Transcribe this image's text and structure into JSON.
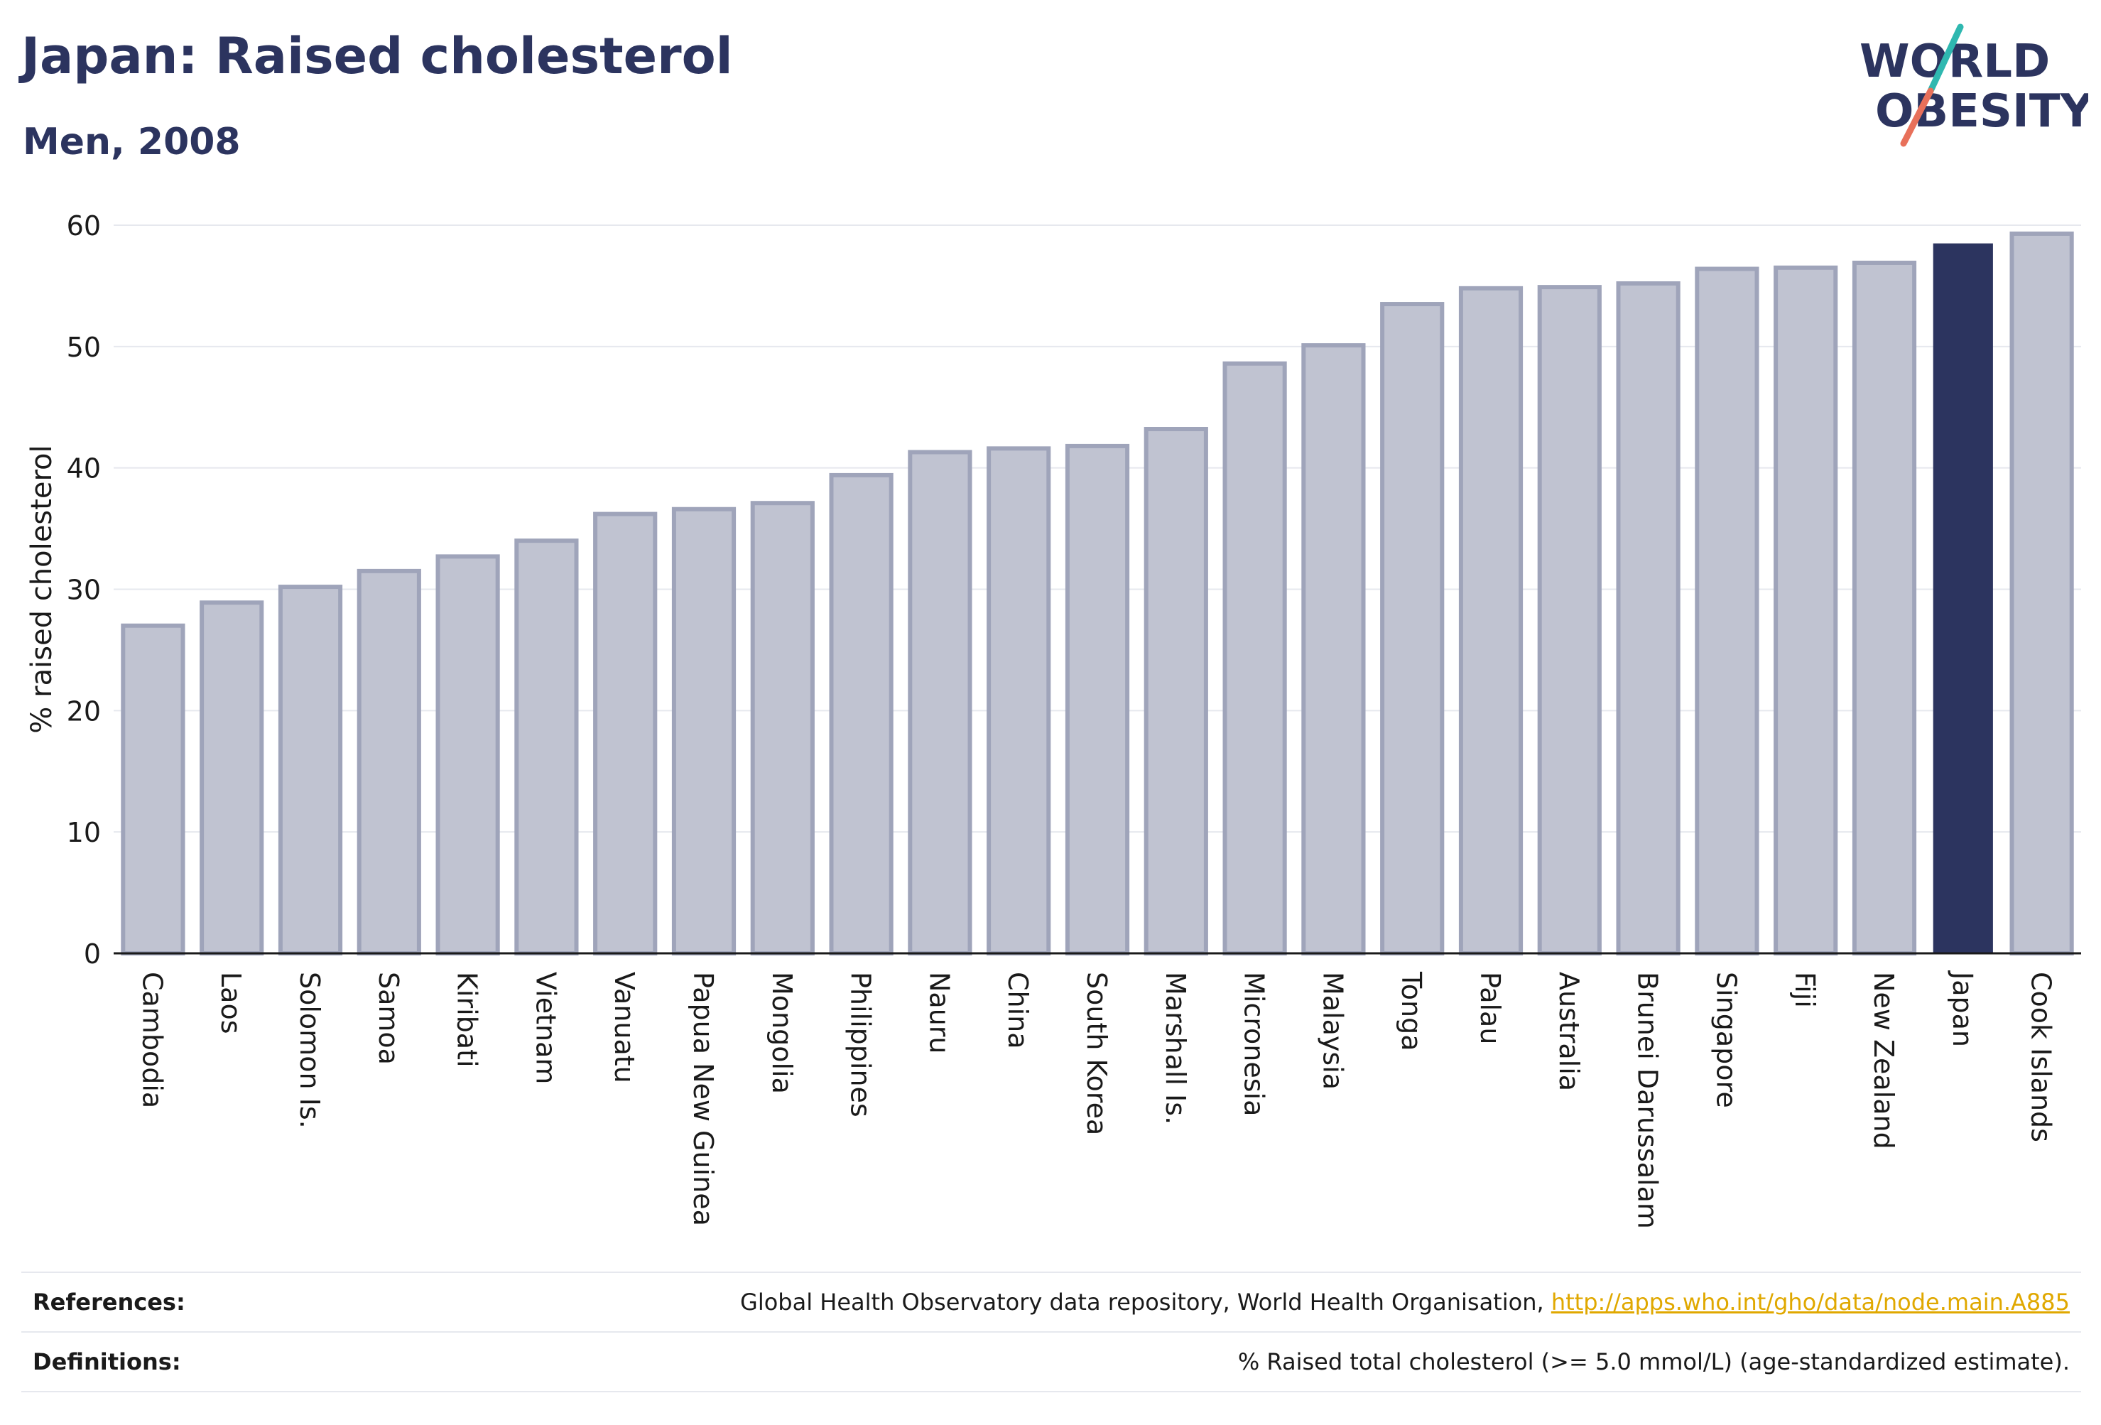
{
  "header": {
    "title": "Japan: Raised cholesterol",
    "subtitle": "Men, 2008"
  },
  "logo": {
    "line1": "WORLD",
    "line2": "OBESITY",
    "color_text": "#2c345f",
    "color_slash_top": "#2fb8b0",
    "color_slash_bottom": "#e8705a"
  },
  "colors": {
    "bar": "#c0c3d1",
    "bar_stroke": "#9fa4ba",
    "highlight": "#2c345f",
    "grid": "#e6e8ee",
    "axis": "#1a1a1a"
  },
  "chart_data": {
    "type": "bar",
    "title": "Japan: Raised cholesterol",
    "subtitle": "Men, 2008",
    "xlabel": "",
    "ylabel": "% raised cholesterol",
    "ylim": [
      0,
      60
    ],
    "yticks": [
      0,
      10,
      20,
      30,
      40,
      50,
      60
    ],
    "grid": true,
    "highlight": "Japan",
    "categories": [
      "Cambodia",
      "Laos",
      "Solomon Is.",
      "Samoa",
      "Kiribati",
      "Vietnam",
      "Vanuatu",
      "Papua New Guinea",
      "Mongolia",
      "Philippines",
      "Nauru",
      "China",
      "South Korea",
      "Marshall Is.",
      "Micronesia",
      "Malaysia",
      "Tonga",
      "Palau",
      "Australia",
      "Brunei Darussalam",
      "Singapore",
      "Fiji",
      "New Zealand",
      "Japan",
      "Cook Islands"
    ],
    "values": [
      27.0,
      28.9,
      30.2,
      31.5,
      32.7,
      34.0,
      36.2,
      36.6,
      37.1,
      39.4,
      41.3,
      41.6,
      41.8,
      43.2,
      48.6,
      50.1,
      53.5,
      54.8,
      54.9,
      55.2,
      56.4,
      56.5,
      56.9,
      58.5,
      59.3
    ]
  },
  "footer": {
    "references_label": "References:",
    "references_text": "Global Health Observatory data repository, World Health Organisation, ",
    "references_link": "http://apps.who.int/gho/data/node.main.A885",
    "definitions_label": "Definitions:",
    "definitions_text": "% Raised total cholesterol (>= 5.0 mmol/L) (age-standardized estimate)."
  }
}
